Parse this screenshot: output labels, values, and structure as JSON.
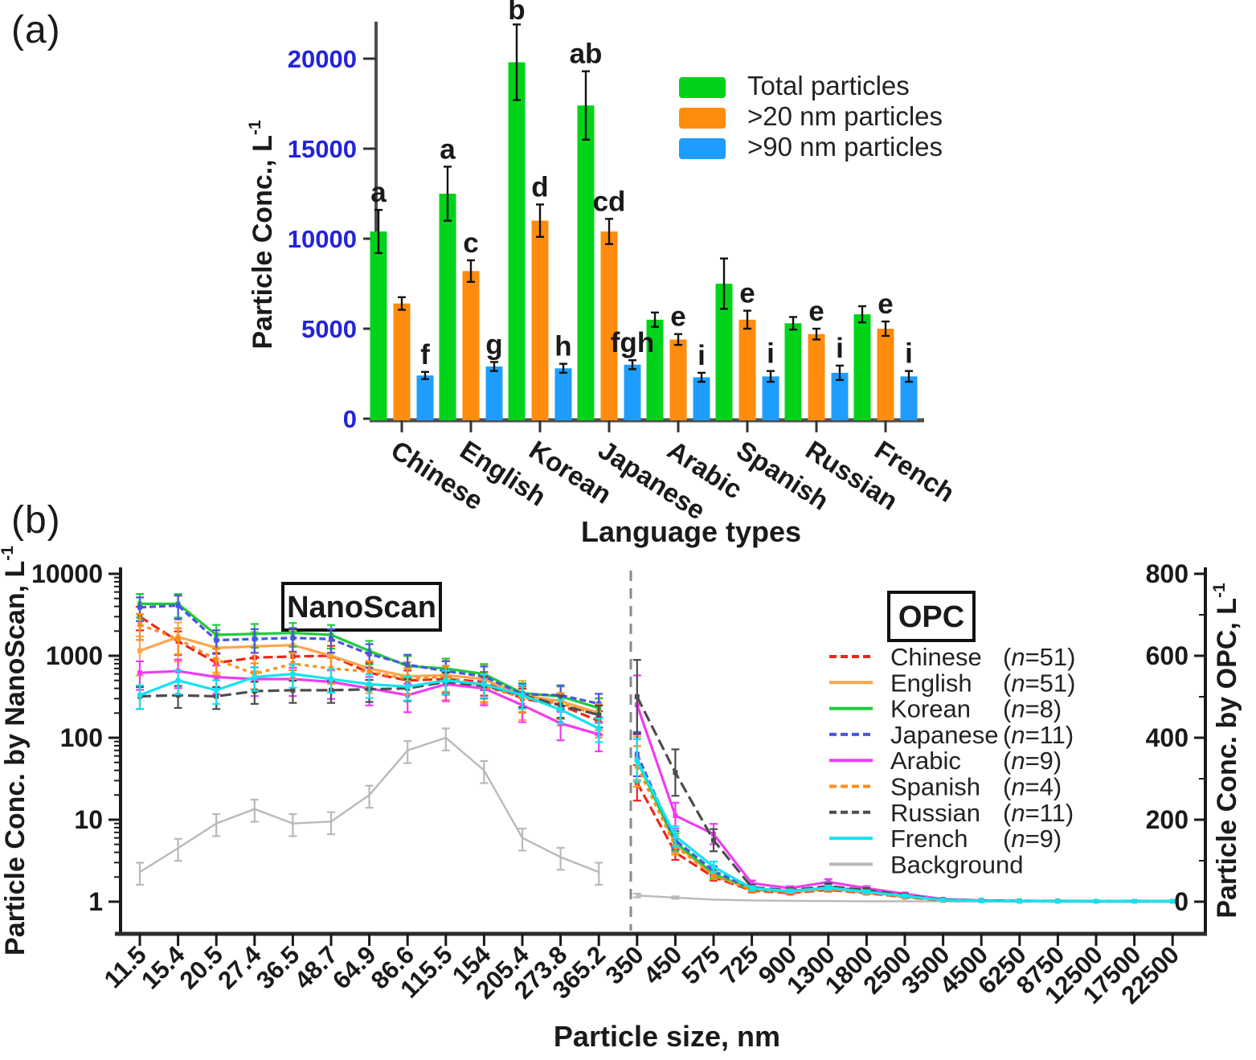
{
  "chart_data": [
    {
      "type": "bar",
      "label": "(a)",
      "y_axis": {
        "title_base": "Particle Conc., L",
        "title_sup": "-1",
        "ticks": [
          0,
          5000,
          10000,
          15000,
          20000
        ],
        "tick_color": "#2323dd",
        "ylim": [
          0,
          22000
        ]
      },
      "x_axis": {
        "title": "Language types"
      },
      "categories": [
        "Chinese",
        "English",
        "Korean",
        "Japanese",
        "Arabic",
        "Spanish",
        "Russian",
        "French"
      ],
      "legend": [
        {
          "label": "Total particles",
          "color": "#00d319"
        },
        {
          "label": ">20 nm particles",
          "color": "#ff8c0d"
        },
        {
          "label": ">90 nm particles",
          "color": "#1f9dff"
        }
      ],
      "series": [
        {
          "name": "Total particles",
          "color": "#00d319",
          "values": [
            10400,
            12500,
            19800,
            17400,
            5500,
            7500,
            5300,
            5800
          ],
          "errors": [
            1200,
            1500,
            2100,
            1900,
            400,
            1400,
            350,
            450
          ],
          "letters": [
            "a",
            "a",
            "b",
            "ab",
            "",
            "",
            "",
            ""
          ]
        },
        {
          "name": ">20 nm particles",
          "color": "#ff8c0d",
          "values": [
            6400,
            8200,
            11000,
            10400,
            4400,
            5500,
            4700,
            5000
          ],
          "errors": [
            350,
            600,
            900,
            700,
            300,
            500,
            300,
            400
          ],
          "letters": [
            "",
            "c",
            "d",
            "cd",
            "e",
            "e",
            "e",
            "e"
          ]
        },
        {
          "name": ">90 nm particles",
          "color": "#1f9dff",
          "values": [
            2400,
            2900,
            2800,
            3000,
            2300,
            2350,
            2550,
            2350
          ],
          "errors": [
            200,
            250,
            250,
            250,
            250,
            300,
            400,
            300
          ],
          "letters": [
            "f",
            "g",
            "h",
            "fgh",
            "i",
            "i",
            "i",
            "i"
          ]
        }
      ]
    },
    {
      "type": "line",
      "label": "(b)",
      "left_axis": {
        "title_base": "Particle Conc. by NanoScan, L",
        "title_sup": "-1",
        "ticks": [
          1,
          10,
          100,
          1000,
          10000
        ],
        "scale": "log"
      },
      "right_axis": {
        "title_base": "Particle Conc. by OPC, L",
        "title_sup": "-1",
        "ticks": [
          0,
          200,
          400,
          600,
          800
        ],
        "scale": "linear"
      },
      "x_axis": {
        "title": "Particle size, nm",
        "nano_labels": [
          "11.5",
          "15.4",
          "20.5",
          "27.4",
          "36.5",
          "48.7",
          "64.9",
          "86.6",
          "115.5",
          "154",
          "205.4",
          "273.8",
          "365.2"
        ],
        "opc_labels": [
          "350",
          "450",
          "575",
          "725",
          "900",
          "1300",
          "1800",
          "2500",
          "3500",
          "4500",
          "6250",
          "8750",
          "12500",
          "17500",
          "22500"
        ]
      },
      "section_labels": {
        "nano": "NanoScan",
        "opc": "OPC"
      },
      "series": [
        {
          "name": "Chinese",
          "n": "51",
          "color": "#ec2719",
          "dash": "12,5",
          "err_frac_nano": 0.32,
          "err_frac_opc": 0.15,
          "nano": [
            3000,
            1500,
            820,
            950,
            980,
            1000,
            620,
            500,
            520,
            480,
            300,
            250,
            160
          ],
          "opc": [
            290,
            120,
            60,
            27,
            21,
            29,
            21,
            11,
            3,
            2,
            1,
            1,
            1,
            1,
            1
          ]
        },
        {
          "name": "English",
          "n": "51",
          "color": "#ffa54f",
          "dash": "",
          "err_frac_nano": 0.5,
          "err_frac_opc": 0.15,
          "nano": [
            1150,
            1700,
            1250,
            1300,
            1350,
            1000,
            700,
            560,
            580,
            520,
            330,
            280,
            200
          ],
          "opc": [
            350,
            140,
            65,
            30,
            24,
            32,
            23,
            13,
            4,
            2,
            1.5,
            1,
            1,
            1,
            1
          ]
        },
        {
          "name": "Korean",
          "n": "8",
          "color": "#1ecb3c",
          "dash": "",
          "err_frac_nano": 0.32,
          "err_frac_opc": 0.15,
          "nano": [
            4300,
            4300,
            1800,
            1850,
            1900,
            1800,
            1150,
            750,
            700,
            600,
            350,
            320,
            230
          ],
          "opc": [
            345,
            145,
            68,
            30,
            25,
            34,
            24,
            13,
            4,
            2,
            1.5,
            1,
            1,
            1,
            1
          ]
        },
        {
          "name": "Japanese",
          "n": "11",
          "color": "#4a55e0",
          "dash": "8,4",
          "err_frac_nano": 0.32,
          "err_frac_opc": 0.15,
          "nano": [
            3900,
            4100,
            1550,
            1600,
            1650,
            1600,
            1050,
            780,
            650,
            560,
            340,
            330,
            260
          ],
          "opc": [
            360,
            150,
            75,
            32,
            26,
            36,
            26,
            14,
            4,
            2,
            1.5,
            1,
            1,
            1,
            1
          ]
        },
        {
          "name": "Arabic",
          "n": "9",
          "color": "#ef3cf2",
          "dash": "",
          "err_frac_nano": 0.38,
          "err_frac_opc": 0.15,
          "nano": [
            620,
            650,
            550,
            520,
            520,
            480,
            400,
            330,
            450,
            400,
            250,
            150,
            110
          ],
          "opc": [
            480,
            210,
            165,
            45,
            33,
            48,
            33,
            19,
            6,
            3,
            2,
            1.5,
            1,
            1,
            1
          ]
        },
        {
          "name": "Spanish",
          "n": "4",
          "color": "#ff8c1a",
          "dash": "5,5",
          "err_frac_nano": 0.35,
          "err_frac_opc": 0.15,
          "nano": [
            2400,
            1600,
            900,
            600,
            800,
            700,
            640,
            520,
            560,
            420,
            310,
            260,
            190
          ],
          "opc": [
            330,
            135,
            64,
            29,
            23,
            31,
            22,
            12,
            3,
            2,
            1.5,
            1,
            1,
            1,
            1
          ]
        },
        {
          "name": "Russian",
          "n": "11",
          "color": "#4d4d4d",
          "dash": "14,6",
          "err_frac_nano": 0.3,
          "err_frac_opc": 0.18,
          "nano": [
            320,
            330,
            320,
            370,
            380,
            380,
            390,
            400,
            480,
            430,
            330,
            250,
            190
          ],
          "opc": [
            500,
            315,
            150,
            35,
            28,
            38,
            28,
            16,
            5,
            3,
            2,
            1.5,
            1,
            1,
            1
          ]
        },
        {
          "name": "French",
          "n": "9",
          "color": "#12e3f0",
          "dash": "",
          "err_frac_nano": 0.32,
          "err_frac_opc": 0.15,
          "nano": [
            330,
            500,
            380,
            550,
            600,
            520,
            450,
            420,
            500,
            450,
            330,
            220,
            130
          ],
          "opc": [
            345,
            160,
            85,
            33,
            26,
            34,
            24,
            14,
            4,
            2,
            1.5,
            1,
            1,
            1,
            1
          ]
        },
        {
          "name": "Background",
          "n": "",
          "color": "#b9b9b9",
          "dash": "",
          "err_frac_nano": 0.3,
          "err_frac_opc": 0.3,
          "nano": [
            2.3,
            4.5,
            9,
            13.5,
            9,
            9.5,
            20,
            70,
            100,
            40,
            6,
            3.5,
            2.3
          ],
          "opc": [
            15,
            10,
            5,
            3,
            2,
            1.5,
            1,
            1,
            0.8,
            0.6,
            0.5,
            0.5,
            0.5,
            0.5,
            0.5
          ]
        }
      ]
    }
  ]
}
